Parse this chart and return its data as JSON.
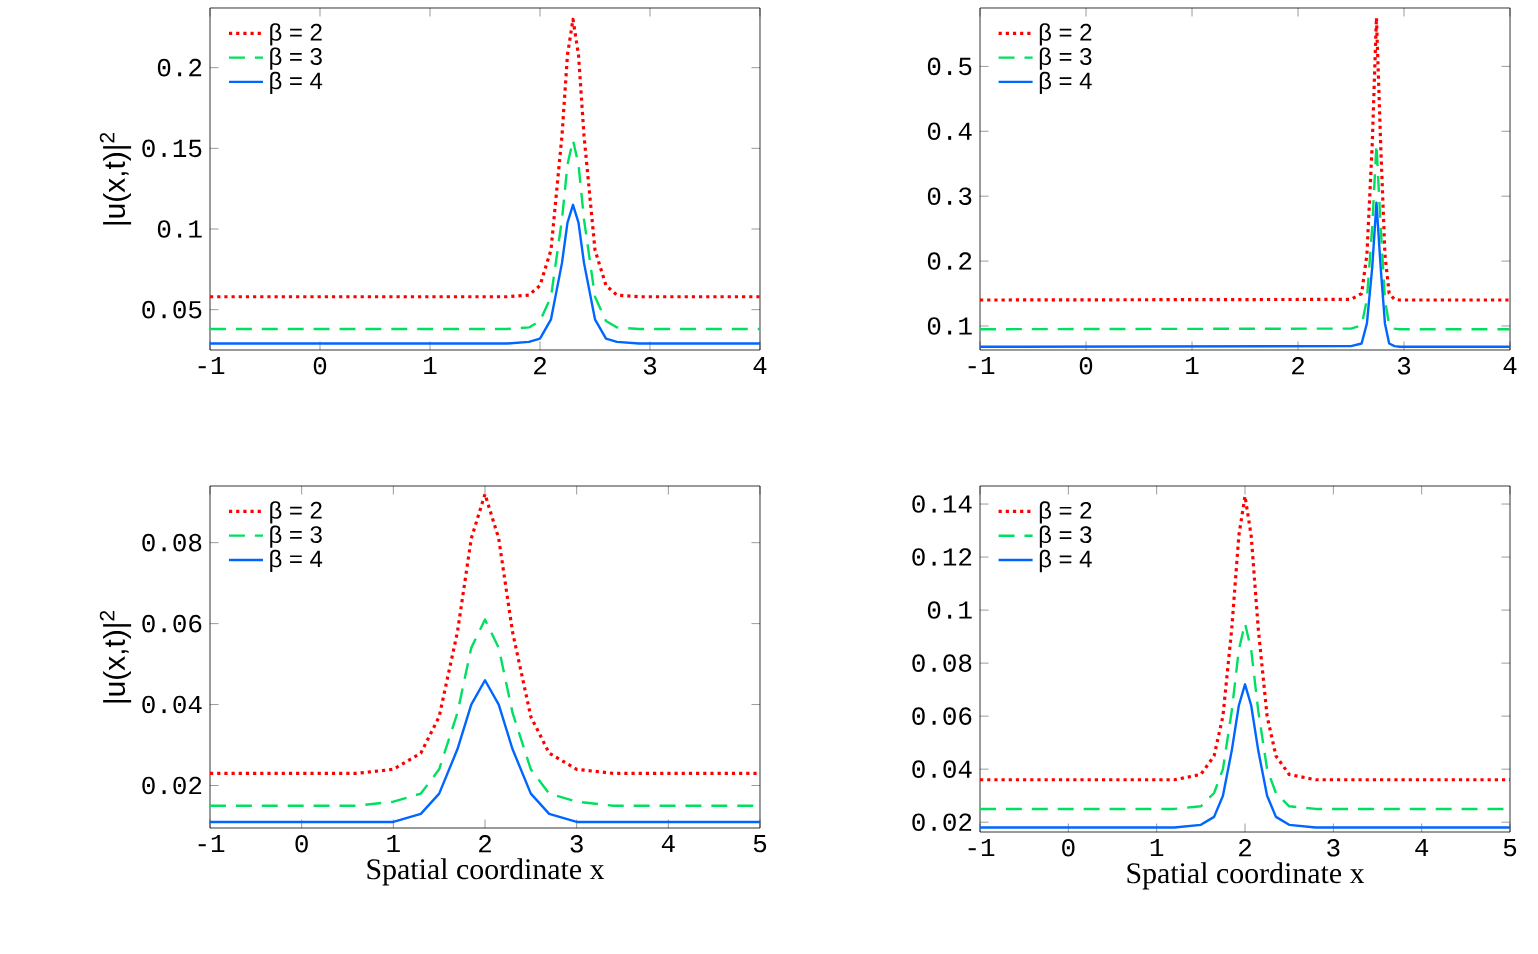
{
  "chart_data": [
    {
      "type": "line",
      "ylabel": "|u(x,t)|$^{2}$",
      "xlim": [
        -1,
        4
      ],
      "ylim": [
        0.025,
        0.237
      ],
      "xticks": [
        -1,
        0,
        1,
        2,
        3,
        4
      ],
      "yticks": [
        0.05,
        0.1,
        0.15,
        0.2
      ],
      "legend": "top left",
      "grid": false,
      "x": [
        -1,
        1.7,
        1.9,
        2.0,
        2.1,
        2.2,
        2.25,
        2.3,
        2.35,
        2.4,
        2.5,
        2.6,
        2.7,
        2.9,
        4
      ],
      "series": [
        {
          "name": "β = 2",
          "color": "#ff0000",
          "line_style": "dotted",
          "values": [
            0.058,
            0.058,
            0.059,
            0.065,
            0.087,
            0.158,
            0.208,
            0.23,
            0.208,
            0.158,
            0.087,
            0.065,
            0.059,
            0.058,
            0.058
          ]
        },
        {
          "name": "β = 3",
          "color": "#00e060",
          "line_style": "dashed",
          "values": [
            0.038,
            0.038,
            0.039,
            0.043,
            0.058,
            0.106,
            0.14,
            0.155,
            0.14,
            0.106,
            0.058,
            0.043,
            0.039,
            0.038,
            0.038
          ]
        },
        {
          "name": "β = 4",
          "color": "#0066ff",
          "line_style": "solid",
          "values": [
            0.029,
            0.029,
            0.03,
            0.032,
            0.044,
            0.079,
            0.104,
            0.115,
            0.104,
            0.079,
            0.044,
            0.032,
            0.03,
            0.029,
            0.029
          ]
        }
      ]
    },
    {
      "type": "line",
      "xlim": [
        -1,
        4
      ],
      "ylim": [
        0.063,
        0.59
      ],
      "xticks": [
        -1,
        0,
        1,
        2,
        3,
        4
      ],
      "yticks": [
        0.1,
        0.2,
        0.3,
        0.4,
        0.5
      ],
      "legend": "top left",
      "grid": false,
      "x": [
        -1,
        2.5,
        2.6,
        2.65,
        2.7,
        2.74,
        2.78,
        2.82,
        2.86,
        2.91,
        2.96,
        3.06,
        4
      ],
      "series": [
        {
          "name": "β = 2",
          "color": "#ff0000",
          "line_style": "dotted",
          "values": [
            0.14,
            0.141,
            0.15,
            0.21,
            0.379,
            0.575,
            0.379,
            0.21,
            0.15,
            0.141,
            0.14,
            0.14,
            0.14
          ]
        },
        {
          "name": "β = 3",
          "color": "#00e060",
          "line_style": "dashed",
          "values": [
            0.095,
            0.096,
            0.101,
            0.141,
            0.252,
            0.38,
            0.252,
            0.141,
            0.101,
            0.096,
            0.095,
            0.095,
            0.095
          ]
        },
        {
          "name": "β = 4",
          "color": "#0066ff",
          "line_style": "solid",
          "values": [
            0.068,
            0.069,
            0.073,
            0.104,
            0.19,
            0.29,
            0.19,
            0.104,
            0.073,
            0.069,
            0.068,
            0.068,
            0.068
          ]
        }
      ]
    },
    {
      "type": "line",
      "ylabel": "|u(x,t)|$^{2}$",
      "xlabel": "Spatial coordinate  x",
      "xlim": [
        -1,
        5
      ],
      "ylim": [
        0.0095,
        0.094
      ],
      "xticks": [
        -1,
        0,
        1,
        2,
        3,
        4,
        5
      ],
      "yticks": [
        0.02,
        0.04,
        0.06,
        0.08
      ],
      "legend": "top left",
      "grid": false,
      "x": [
        -1,
        0.6,
        1.0,
        1.3,
        1.5,
        1.7,
        1.85,
        2,
        2.15,
        2.3,
        2.5,
        2.7,
        3.0,
        3.4,
        5
      ],
      "series": [
        {
          "name": "β = 2",
          "color": "#ff0000",
          "line_style": "dotted",
          "values": [
            0.023,
            0.023,
            0.024,
            0.028,
            0.037,
            0.058,
            0.081,
            0.092,
            0.081,
            0.058,
            0.037,
            0.028,
            0.024,
            0.023,
            0.023
          ]
        },
        {
          "name": "β = 3",
          "color": "#00e060",
          "line_style": "dashed",
          "values": [
            0.015,
            0.015,
            0.016,
            0.018,
            0.024,
            0.038,
            0.054,
            0.061,
            0.054,
            0.038,
            0.024,
            0.018,
            0.016,
            0.015,
            0.015
          ]
        },
        {
          "name": "β = 4",
          "color": "#0066ff",
          "line_style": "solid",
          "values": [
            0.011,
            0.011,
            0.011,
            0.013,
            0.018,
            0.029,
            0.04,
            0.046,
            0.04,
            0.029,
            0.018,
            0.013,
            0.011,
            0.011,
            0.011
          ]
        }
      ]
    },
    {
      "type": "line",
      "xlabel": "Spatial coordinate  x",
      "xlim": [
        -1,
        5
      ],
      "ylim": [
        0.0163,
        0.1468
      ],
      "xticks": [
        -1,
        0,
        1,
        2,
        3,
        4,
        5
      ],
      "yticks": [
        0.02,
        0.04,
        0.06,
        0.08,
        0.1,
        0.12,
        0.14
      ],
      "legend": "top left",
      "grid": false,
      "x": [
        -1,
        1.2,
        1.5,
        1.65,
        1.75,
        1.85,
        1.93,
        2,
        2.07,
        2.15,
        2.25,
        2.35,
        2.5,
        2.8,
        5
      ],
      "series": [
        {
          "name": "β = 2",
          "color": "#ff0000",
          "line_style": "dotted",
          "values": [
            0.036,
            0.036,
            0.038,
            0.045,
            0.06,
            0.093,
            0.128,
            0.143,
            0.128,
            0.093,
            0.06,
            0.045,
            0.038,
            0.036,
            0.036
          ]
        },
        {
          "name": "β = 3",
          "color": "#00e060",
          "line_style": "dashed",
          "values": [
            0.025,
            0.025,
            0.026,
            0.031,
            0.04,
            0.062,
            0.085,
            0.095,
            0.085,
            0.062,
            0.04,
            0.031,
            0.026,
            0.025,
            0.025
          ]
        },
        {
          "name": "β = 4",
          "color": "#0066ff",
          "line_style": "solid",
          "values": [
            0.018,
            0.018,
            0.019,
            0.022,
            0.03,
            0.047,
            0.064,
            0.072,
            0.064,
            0.047,
            0.03,
            0.022,
            0.019,
            0.018,
            0.018
          ]
        }
      ]
    }
  ]
}
